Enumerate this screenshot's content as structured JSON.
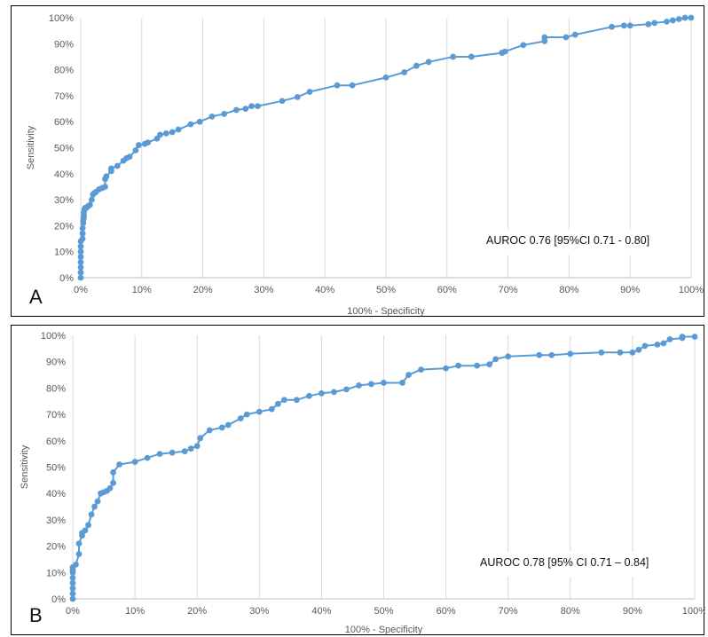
{
  "chart_data": [
    {
      "type": "line",
      "panel_label": "A",
      "xlabel": "100% - Specificity",
      "ylabel": "Sensitivity",
      "xlim": [
        0,
        100
      ],
      "ylim": [
        0,
        100
      ],
      "x_ticks": [
        "0%",
        "10%",
        "20%",
        "30%",
        "40%",
        "50%",
        "60%",
        "70%",
        "80%",
        "90%",
        "100%"
      ],
      "y_ticks": [
        "0%",
        "10%",
        "20%",
        "30%",
        "40%",
        "50%",
        "60%",
        "70%",
        "80%",
        "90%",
        "100%"
      ],
      "grid": "vertical",
      "annotation": "AUROC 0.76 [95%CI 0.71 - 0.80]",
      "color": "#5b9bd5",
      "markers": true,
      "x": [
        0,
        0,
        0,
        0,
        0,
        0,
        0,
        0,
        0.3,
        0.3,
        0.3,
        0.4,
        0.4,
        0.5,
        0.5,
        0.5,
        0.6,
        0.6,
        0.7,
        0.8,
        1.0,
        1.2,
        1.5,
        1.8,
        2.0,
        2.2,
        2.5,
        3.0,
        3.5,
        4.0,
        4.0,
        4.2,
        5.0,
        5.0,
        6.0,
        7.0,
        7.5,
        8.0,
        9.0,
        9.5,
        10.5,
        11.0,
        12.5,
        13.0,
        14.0,
        15.0,
        16.0,
        18.0,
        19.5,
        21.5,
        23.5,
        25.5,
        27.0,
        28.0,
        29.0,
        33.0,
        35.5,
        37.5,
        42.0,
        44.5,
        50.0,
        53.0,
        55.0,
        57.0,
        61.0,
        64.0,
        69.0,
        69.5,
        72.5,
        76.0,
        76.0,
        79.5,
        81.0,
        87.0,
        89.0,
        90.0,
        93.0,
        94.0,
        96.0,
        97.0,
        98.0,
        99.0,
        100.0
      ],
      "y": [
        0,
        2,
        4,
        6,
        8,
        10,
        12,
        14,
        15,
        17,
        19,
        21,
        22,
        23,
        24,
        25,
        26,
        26.3,
        26.7,
        26.9,
        27,
        27.5,
        28,
        30,
        32,
        32.5,
        33,
        34,
        34.5,
        35,
        38,
        39,
        41,
        42,
        43,
        45,
        46,
        46.5,
        49,
        51,
        51.5,
        52,
        53.5,
        55,
        55.5,
        56,
        57,
        59,
        60,
        62,
        63,
        64.5,
        65,
        66,
        66,
        68,
        69.5,
        71.5,
        74,
        74,
        77,
        79,
        81.5,
        83,
        85,
        85,
        86.5,
        87,
        89.5,
        91,
        92.5,
        92.5,
        93.5,
        96.5,
        97,
        97,
        97.5,
        98,
        98.5,
        99,
        99.5,
        100,
        100
      ]
    },
    {
      "type": "line",
      "panel_label": "B",
      "xlabel": "100% - Specificity",
      "ylabel": "Sensitivity",
      "xlim": [
        0,
        100
      ],
      "ylim": [
        0,
        100
      ],
      "x_ticks": [
        "0%",
        "10%",
        "20%",
        "30%",
        "40%",
        "50%",
        "60%",
        "70%",
        "80%",
        "90%",
        "100%"
      ],
      "y_ticks": [
        "0%",
        "10%",
        "20%",
        "30%",
        "40%",
        "50%",
        "60%",
        "70%",
        "80%",
        "90%",
        "100%"
      ],
      "grid": "vertical",
      "annotation": "AUROC 0.78 [95% CI 0.71 – 0.84]",
      "color": "#5b9bd5",
      "markers": true,
      "x": [
        0,
        0,
        0,
        0,
        0,
        0,
        0,
        0,
        0.5,
        1.0,
        1.0,
        1.5,
        1.5,
        2.0,
        2.5,
        3.0,
        3.5,
        4.0,
        4.5,
        5.0,
        5.5,
        6.0,
        6.5,
        6.5,
        7.5,
        10.0,
        12.0,
        14.0,
        16.0,
        18.0,
        19.0,
        20.0,
        20.5,
        22.0,
        24.0,
        25.0,
        27.0,
        28.0,
        30.0,
        32.0,
        33.0,
        34.0,
        36.0,
        38.0,
        40.0,
        42.0,
        44.0,
        46.0,
        48.0,
        50.0,
        53.0,
        54.0,
        56.0,
        60.0,
        62.0,
        65.0,
        67.0,
        68.0,
        70.0,
        75.0,
        77.0,
        80.0,
        85.0,
        88.0,
        90.0,
        91.0,
        92.0,
        94.0,
        95.0,
        96.0,
        98.0,
        98.0,
        100.0
      ],
      "y": [
        0,
        2,
        4,
        6,
        8,
        10,
        11,
        12,
        13,
        17,
        21,
        24,
        25,
        26,
        28,
        32,
        35,
        37,
        40,
        40.5,
        41,
        42,
        44,
        48,
        51,
        52,
        53.5,
        55,
        55.5,
        56,
        57,
        58,
        61,
        64,
        65,
        66,
        68.5,
        70,
        71,
        72,
        74,
        75.5,
        75.5,
        77,
        78,
        78.5,
        79.5,
        81,
        81.5,
        82,
        82,
        85,
        87,
        87.5,
        88.5,
        88.5,
        89,
        91,
        92,
        92.5,
        92.5,
        93,
        93.5,
        93.5,
        93.5,
        94.5,
        96,
        96.5,
        97,
        98.5,
        99,
        99.5,
        99.5
      ]
    }
  ]
}
